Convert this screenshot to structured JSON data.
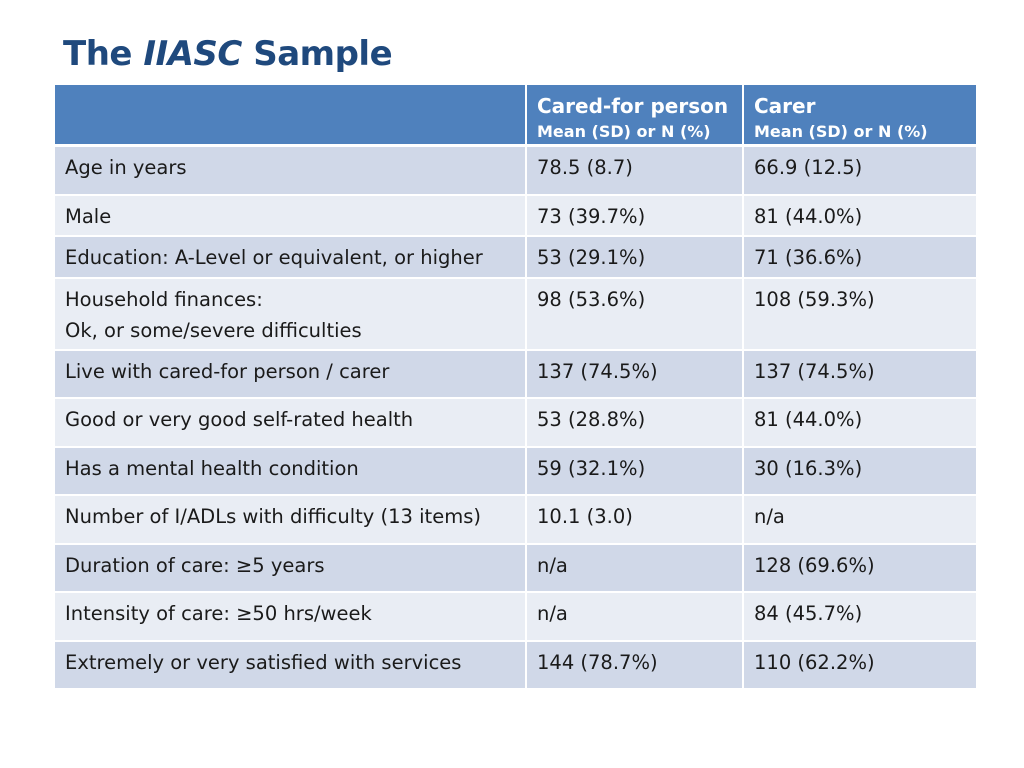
{
  "title": {
    "prefix": "The",
    "italic": "IIASC",
    "suffix": "Sample"
  },
  "table": {
    "header": {
      "col1": "",
      "col2_title": "Cared-for person",
      "col2_sub": "Mean (SD) or N (%)",
      "col3_title": "Carer",
      "col3_sub": "Mean (SD) or N (%)"
    },
    "rows": [
      {
        "label": "Age in years",
        "label2": "",
        "cared": "78.5 (8.7)",
        "carer": "66.9 (12.5)"
      },
      {
        "label": "Male",
        "label2": "",
        "cared": "73 (39.7%)",
        "carer": "81 (44.0%)"
      },
      {
        "label": "Education: A-Level or equivalent, or higher",
        "label2": "",
        "cared": "53 (29.1%)",
        "carer": "71 (36.6%)"
      },
      {
        "label": "Household finances:",
        "label2": "Ok, or some/severe difficulties",
        "cared": "98 (53.6%)",
        "carer": "108 (59.3%)"
      },
      {
        "label": "Live with cared-for person / carer",
        "label2": "",
        "cared": "137 (74.5%)",
        "carer": "137 (74.5%)"
      },
      {
        "label": "Good or very good self-rated health",
        "label2": "",
        "cared": "53 (28.8%)",
        "carer": "81 (44.0%)"
      },
      {
        "label": "Has a mental health condition",
        "label2": "",
        "cared": "59 (32.1%)",
        "carer": "30 (16.3%)"
      },
      {
        "label": "Number of I/ADLs with difficulty (13 items)",
        "label2": "",
        "cared": "10.1 (3.0)",
        "carer": "n/a"
      },
      {
        "label": "Duration of care: ≥5 years",
        "label2": "",
        "cared": "n/a",
        "carer": "128 (69.6%)"
      },
      {
        "label": "Intensity of care: ≥50 hrs/week",
        "label2": "",
        "cared": "n/a",
        "carer": "84 (45.7%)"
      },
      {
        "label": "Extremely or very satisfied with services",
        "label2": "",
        "cared": "144 (78.7%)",
        "carer": "110 (62.2%)"
      }
    ]
  }
}
